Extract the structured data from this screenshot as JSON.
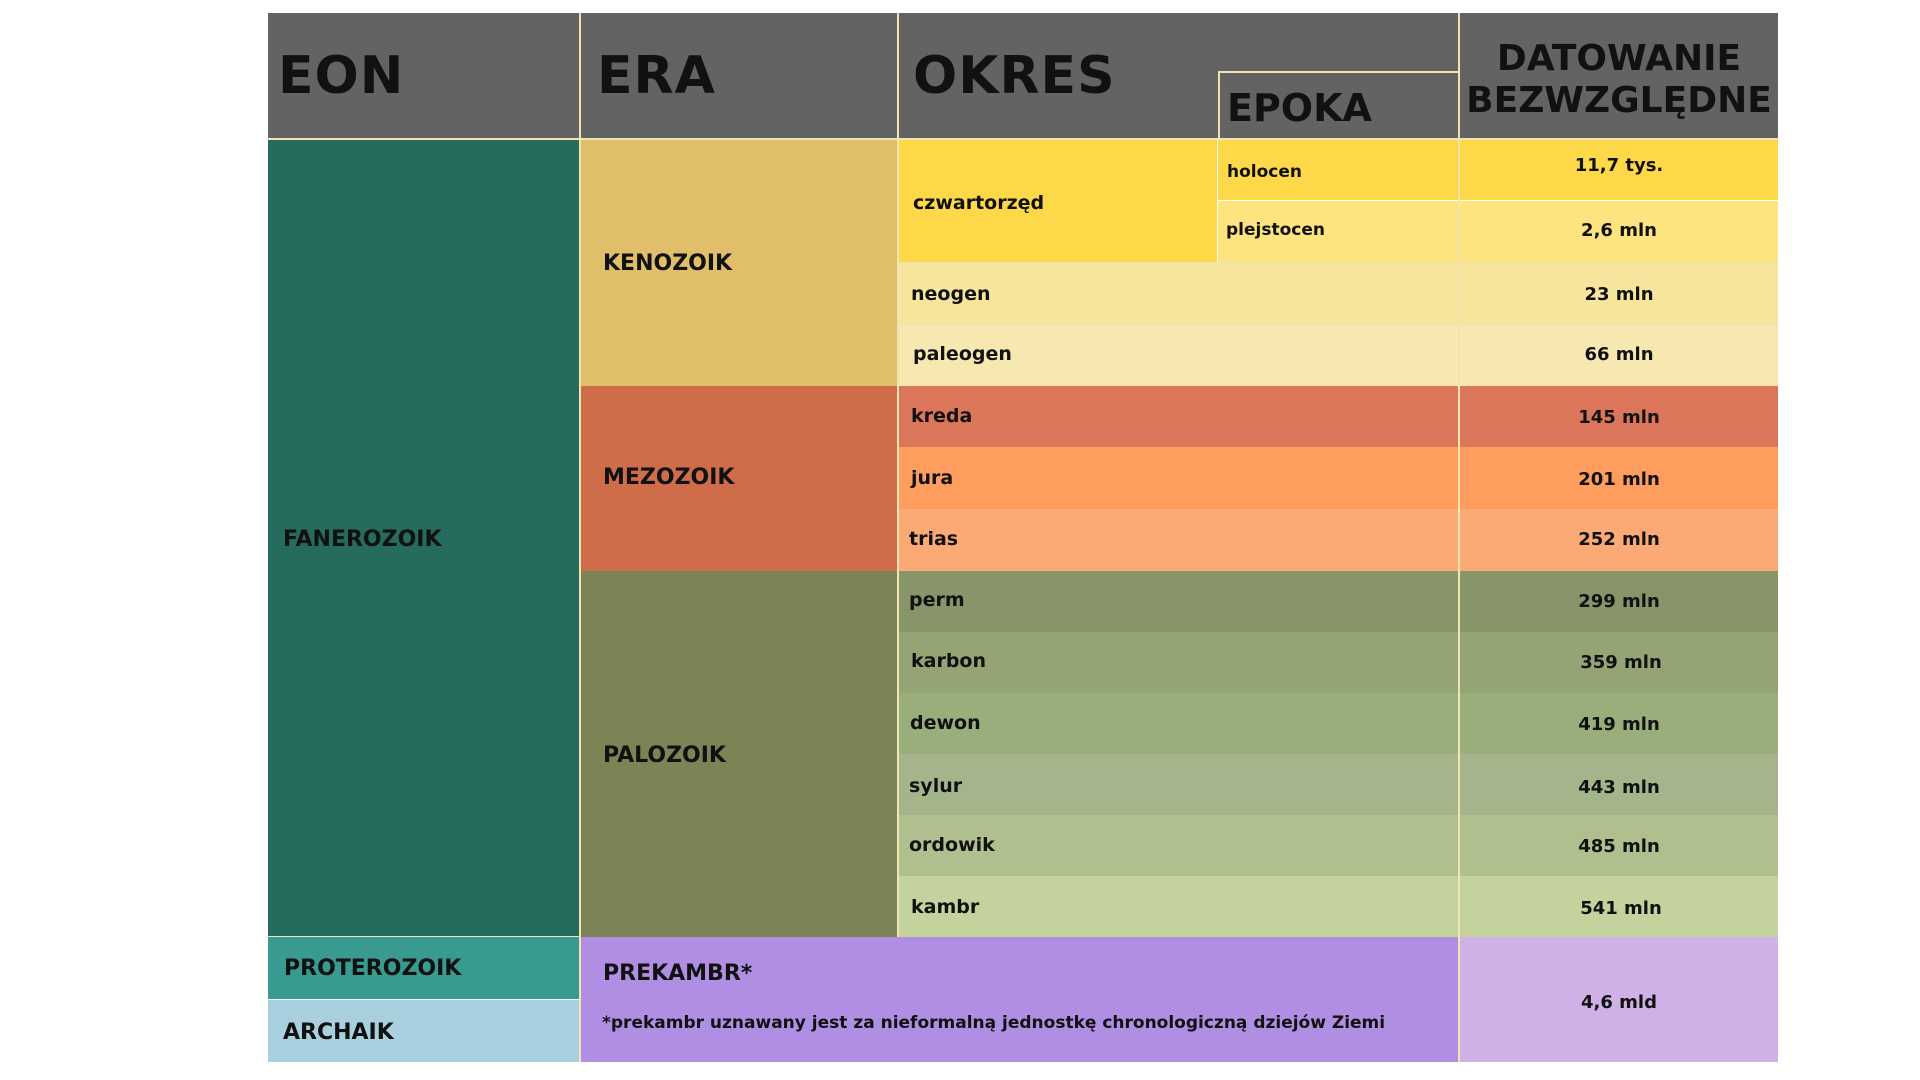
{
  "headers": {
    "eon": "EON",
    "era": "ERA",
    "okres": "OKRES",
    "epoka": "EPOKA",
    "datowanie_line1": "DATOWANIE",
    "datowanie_line2": "BEZWZGLĘDNE"
  },
  "eons": {
    "fanerozoik": "FANEROZOIK",
    "proterozoik": "PROTEROZOIK",
    "archaik": "ARCHAIK"
  },
  "eras": {
    "kenozoik": "KENOZOIK",
    "mezozoik": "MEZOZOIK",
    "palozoik": "PALOZOIK",
    "prekambr": "PREKAMBR*",
    "prekambr_note": "*prekambr uznawany jest za nieformalną jednostkę chronologiczną dziejów Ziemi"
  },
  "rows": [
    {
      "period": "czwartorzęd",
      "epoch": "holocen",
      "date": "11,7 tys."
    },
    {
      "period": "",
      "epoch": "plejstocen",
      "date": "2,6 mln"
    },
    {
      "period": "neogen",
      "epoch": "",
      "date": "23 mln"
    },
    {
      "period": "paleogen",
      "epoch": "",
      "date": "66 mln"
    },
    {
      "period": "kreda",
      "epoch": "",
      "date": "145 mln"
    },
    {
      "period": "jura",
      "epoch": "",
      "date": "201 mln"
    },
    {
      "period": "trias",
      "epoch": "",
      "date": "252 mln"
    },
    {
      "period": "perm",
      "epoch": "",
      "date": "299 mln"
    },
    {
      "period": "karbon",
      "epoch": "",
      "date": "359 mln"
    },
    {
      "period": "dewon",
      "epoch": "",
      "date": "419 mln"
    },
    {
      "period": "sylur",
      "epoch": "",
      "date": "443 mln"
    },
    {
      "period": "ordowik",
      "epoch": "",
      "date": "485 mln"
    },
    {
      "period": "kambr",
      "epoch": "",
      "date": "541 mln"
    }
  ],
  "prekambr_date": "4,6 mld",
  "colors": {
    "header": "#636363",
    "fanerozoik": "#256b5e",
    "proterozoik": "#399b8f",
    "archaik": "#a8d0de",
    "kenozoik": "#e1bf6a",
    "mezozoik": "#cf6d4a",
    "palozoik": "#7c8455",
    "prekambr": "#b08ee3",
    "prekambr_date": "#cfb1e8"
  }
}
